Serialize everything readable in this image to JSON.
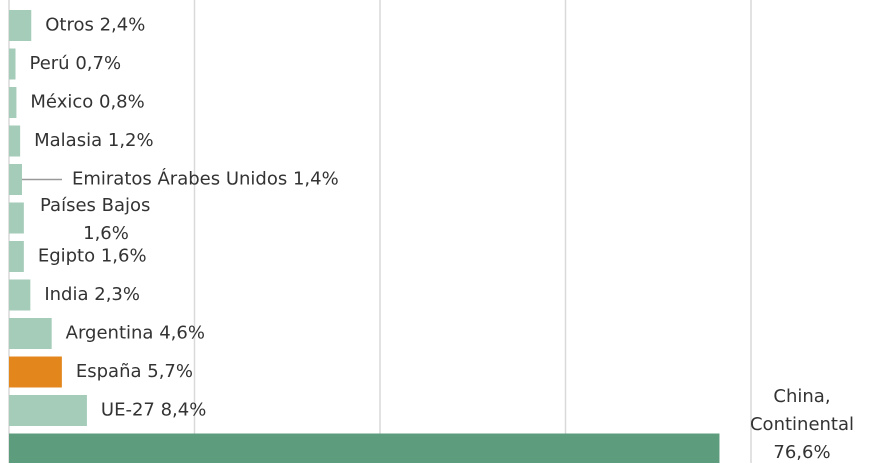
{
  "chart_data": {
    "type": "bar",
    "orientation": "horizontal",
    "categories": [
      "Otros",
      "Perú",
      "México",
      "Malasia",
      "Emiratos Árabes Unidos",
      "Países Bajos",
      "Egipto",
      "India",
      "Argentina",
      "España",
      "UE-27",
      "China, Continental"
    ],
    "values": [
      2.4,
      0.7,
      0.8,
      1.2,
      1.4,
      1.6,
      1.6,
      2.3,
      4.6,
      5.7,
      8.4,
      76.6
    ],
    "value_labels": [
      "2,4%",
      "0,7%",
      "0,8%",
      "1,2%",
      "1,4%",
      "1,6%",
      "1,6%",
      "2,3%",
      "4,6%",
      "5,7%",
      "8,4%",
      "76,6%"
    ],
    "colors": [
      "#a5cbb9",
      "#a5cbb9",
      "#a5cbb9",
      "#a5cbb9",
      "#a5cbb9",
      "#a5cbb9",
      "#a5cbb9",
      "#a5cbb9",
      "#a5cbb9",
      "#e3871c",
      "#a5cbb9",
      "#5e9c7e"
    ],
    "xlim": [
      0,
      80
    ],
    "xticks": [
      0,
      20,
      40,
      60,
      80
    ],
    "grid": true
  }
}
